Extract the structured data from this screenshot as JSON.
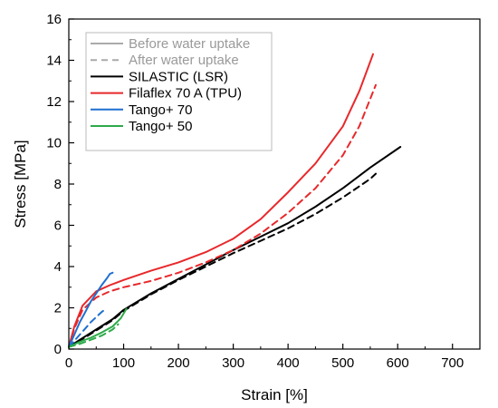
{
  "chart_data": {
    "type": "line",
    "title": "",
    "xlabel": "Strain [%]",
    "ylabel": "Stress [MPa]",
    "xlim": [
      0,
      750
    ],
    "ylim": [
      0,
      16
    ],
    "x_ticks": [
      "0",
      "100",
      "200",
      "300",
      "400",
      "500",
      "600",
      "700"
    ],
    "y_ticks": [
      "0",
      "2",
      "4",
      "6",
      "8",
      "10",
      "12",
      "14",
      "16"
    ],
    "grid": false,
    "legend": {
      "placement": "top-left",
      "style_entries": [
        {
          "label": "Before water uptake",
          "color": "#aaaaaa",
          "dash": "solid"
        },
        {
          "label": "After water uptake",
          "color": "#aaaaaa",
          "dash": "dashed"
        }
      ],
      "material_entries": [
        {
          "label": "SILASTIC (LSR)",
          "color": "#000000"
        },
        {
          "label": "Filaflex 70 A (TPU)",
          "color": "#e8282b"
        },
        {
          "label": "Tango+ 70",
          "color": "#1f6fd1"
        },
        {
          "label": "Tango+ 50",
          "color": "#2eaa4a"
        }
      ]
    },
    "series": [
      {
        "material": "SILASTIC (LSR)",
        "condition": "Before water uptake",
        "color": "#000000",
        "dash": "solid",
        "x": [
          0,
          20,
          50,
          80,
          100,
          150,
          200,
          250,
          300,
          350,
          400,
          450,
          500,
          550,
          605
        ],
        "y": [
          0.1,
          0.45,
          0.95,
          1.45,
          1.9,
          2.7,
          3.4,
          4.1,
          4.8,
          5.45,
          6.1,
          6.9,
          7.8,
          8.8,
          9.8
        ]
      },
      {
        "material": "SILASTIC (LSR)",
        "condition": "After water uptake",
        "color": "#000000",
        "dash": "dashed",
        "x": [
          0,
          20,
          50,
          80,
          100,
          150,
          200,
          250,
          300,
          350,
          400,
          450,
          500,
          550,
          560
        ],
        "y": [
          0.1,
          0.4,
          0.9,
          1.4,
          1.85,
          2.65,
          3.35,
          4.0,
          4.65,
          5.25,
          5.85,
          6.55,
          7.35,
          8.25,
          8.5
        ]
      },
      {
        "material": "Filaflex 70 A (TPU)",
        "condition": "Before water uptake",
        "color": "#e8282b",
        "dash": "solid",
        "x": [
          0,
          10,
          25,
          50,
          75,
          100,
          150,
          200,
          250,
          300,
          350,
          400,
          450,
          500,
          530,
          555
        ],
        "y": [
          0.1,
          1.1,
          2.1,
          2.8,
          3.1,
          3.35,
          3.8,
          4.2,
          4.7,
          5.35,
          6.3,
          7.6,
          9.0,
          10.8,
          12.5,
          14.3
        ]
      },
      {
        "material": "Filaflex 70 A (TPU)",
        "condition": "After water uptake",
        "color": "#e8282b",
        "dash": "dashed",
        "x": [
          0,
          10,
          25,
          50,
          75,
          100,
          150,
          200,
          250,
          300,
          350,
          400,
          450,
          500,
          530,
          560
        ],
        "y": [
          0.1,
          1.0,
          1.9,
          2.5,
          2.8,
          3.0,
          3.3,
          3.7,
          4.2,
          4.8,
          5.6,
          6.6,
          7.8,
          9.4,
          10.8,
          12.8
        ]
      },
      {
        "material": "Tango+ 70",
        "condition": "Before water uptake",
        "color": "#1f6fd1",
        "dash": "solid",
        "x": [
          0,
          10,
          20,
          30,
          40,
          50,
          60,
          70,
          75,
          80
        ],
        "y": [
          0.1,
          0.7,
          1.3,
          1.8,
          2.3,
          2.7,
          3.1,
          3.45,
          3.65,
          3.7
        ]
      },
      {
        "material": "Tango+ 70",
        "condition": "After water uptake",
        "color": "#1f6fd1",
        "dash": "dashed",
        "x": [
          0,
          10,
          20,
          30,
          40,
          50,
          60,
          65
        ],
        "y": [
          0.1,
          0.4,
          0.7,
          1.0,
          1.3,
          1.55,
          1.8,
          1.9
        ]
      },
      {
        "material": "Tango+ 50",
        "condition": "Before water uptake",
        "color": "#2eaa4a",
        "dash": "solid",
        "x": [
          0,
          20,
          40,
          60,
          80,
          95,
          105
        ],
        "y": [
          0.1,
          0.35,
          0.55,
          0.8,
          1.1,
          1.5,
          1.95
        ]
      },
      {
        "material": "Tango+ 50",
        "condition": "After water uptake",
        "color": "#2eaa4a",
        "dash": "dashed",
        "x": [
          0,
          20,
          40,
          60,
          80,
          90
        ],
        "y": [
          0.1,
          0.25,
          0.45,
          0.65,
          0.95,
          1.2
        ]
      }
    ]
  }
}
